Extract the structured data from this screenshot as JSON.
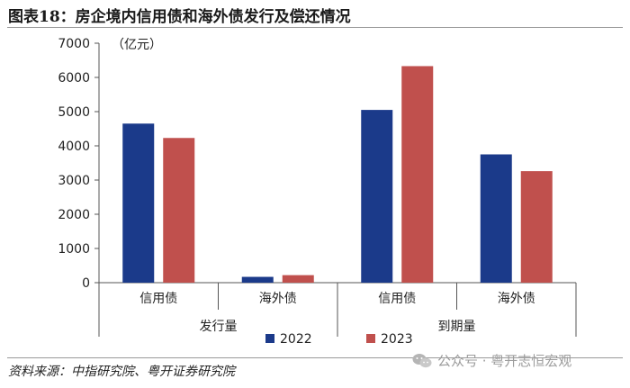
{
  "figure": {
    "title": "图表18：房企境内信用债和海外债发行及偿还情况",
    "source": "资料来源：中指研究院、粤开证券研究院",
    "watermark": "公众号 · 粤开志恒宏观",
    "watermark_icon": "wechat-icon"
  },
  "chart_data": {
    "type": "bar",
    "unit_label": "（亿元）",
    "ylim": [
      0,
      7000
    ],
    "yticks": [
      0,
      1000,
      2000,
      3000,
      4000,
      5000,
      6000,
      7000
    ],
    "grid": false,
    "legend_position": "bottom-right",
    "groups": [
      {
        "label": "发行量",
        "categories": [
          "信用债",
          "海外债"
        ]
      },
      {
        "label": "到期量",
        "categories": [
          "信用债",
          "海外债"
        ]
      }
    ],
    "categories": [
      "信用债",
      "海外债",
      "信用债",
      "海外债"
    ],
    "series": [
      {
        "name": "2022",
        "color": "#1b3a8a",
        "values": [
          4650,
          170,
          5050,
          3750
        ]
      },
      {
        "name": "2023",
        "color": "#c0504d",
        "values": [
          4230,
          220,
          6330,
          3260
        ]
      }
    ]
  }
}
